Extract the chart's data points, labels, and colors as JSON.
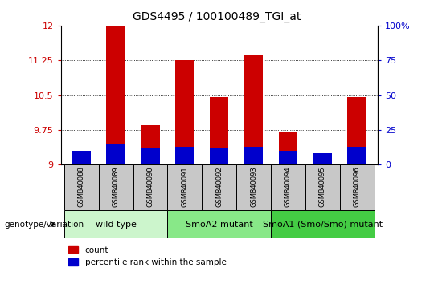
{
  "title": "GDS4495 / 100100489_TGI_at",
  "samples": [
    "GSM840088",
    "GSM840089",
    "GSM840090",
    "GSM840091",
    "GSM840092",
    "GSM840093",
    "GSM840094",
    "GSM840095",
    "GSM840096"
  ],
  "red_values": [
    9.15,
    12.0,
    9.85,
    11.25,
    10.45,
    11.35,
    9.72,
    9.08,
    10.45
  ],
  "blue_pct": [
    10,
    15,
    12,
    13,
    12,
    13,
    10,
    8,
    13
  ],
  "ymin": 9.0,
  "ymax": 12.0,
  "yticks": [
    9.0,
    9.75,
    10.5,
    11.25,
    12.0
  ],
  "ytick_labels": [
    "9",
    "9.75",
    "10.5",
    "11.25",
    "12"
  ],
  "right_yticks": [
    0,
    25,
    50,
    75,
    100
  ],
  "right_ytick_labels": [
    "0",
    "25",
    "50",
    "75",
    "100%"
  ],
  "groups": [
    {
      "label": "wild type",
      "start": 0,
      "end": 3,
      "color": "#ccf5cc"
    },
    {
      "label": "SmoA2 mutant",
      "start": 3,
      "end": 6,
      "color": "#88e888"
    },
    {
      "label": "SmoA1 (Smo/Smo) mutant",
      "start": 6,
      "end": 9,
      "color": "#44cc44"
    }
  ],
  "bar_width": 0.55,
  "red_color": "#cc0000",
  "blue_color": "#0000cc",
  "sample_bg_color": "#c8c8c8",
  "genotype_label": "genotype/variation",
  "legend_count": "count",
  "legend_pct": "percentile rank within the sample",
  "left_tick_color": "#cc0000",
  "right_tick_color": "#0000cc",
  "title_fontsize": 10,
  "tick_fontsize": 8,
  "sample_fontsize": 6,
  "group_fontsize": 8
}
